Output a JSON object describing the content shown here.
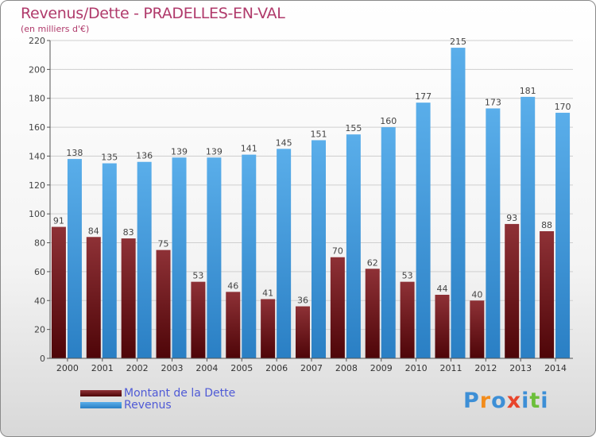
{
  "title": "Revenus/Dette - PRADELLES-EN-VAL",
  "subtitle": "(en milliers d'€)",
  "logo": {
    "text": "Proxiti",
    "letters": [
      "P",
      "r",
      "o",
      "x",
      "i",
      "t",
      "i"
    ],
    "colors": [
      "#3d8fd6",
      "#f28c1c",
      "#3d8fd6",
      "#e8452c",
      "#3d8fd6",
      "#6cbf3a",
      "#3d8fd6"
    ]
  },
  "legend": [
    {
      "label": "Montant de la Dette",
      "color": "#6e1a1f"
    },
    {
      "label": "Revenus",
      "color": "#4a9de0"
    }
  ],
  "chart_data": {
    "type": "bar",
    "title": "Revenus/Dette - PRADELLES-EN-VAL",
    "ylabel": "(en milliers d'€)",
    "xlabel": "",
    "ylim": [
      0,
      220
    ],
    "ytick_step": 20,
    "grid": true,
    "categories": [
      "2000",
      "2001",
      "2002",
      "2003",
      "2004",
      "2005",
      "2006",
      "2007",
      "2008",
      "2009",
      "2010",
      "2011",
      "2012",
      "2013",
      "2014"
    ],
    "series": [
      {
        "name": "Montant de la Dette",
        "color": "#6e1a1f",
        "values": [
          91,
          84,
          83,
          75,
          53,
          46,
          41,
          36,
          70,
          62,
          53,
          44,
          40,
          93,
          88
        ]
      },
      {
        "name": "Revenus",
        "color": "#4a9de0",
        "values": [
          138,
          135,
          136,
          139,
          139,
          141,
          145,
          151,
          155,
          160,
          177,
          215,
          173,
          181,
          170
        ]
      }
    ]
  }
}
